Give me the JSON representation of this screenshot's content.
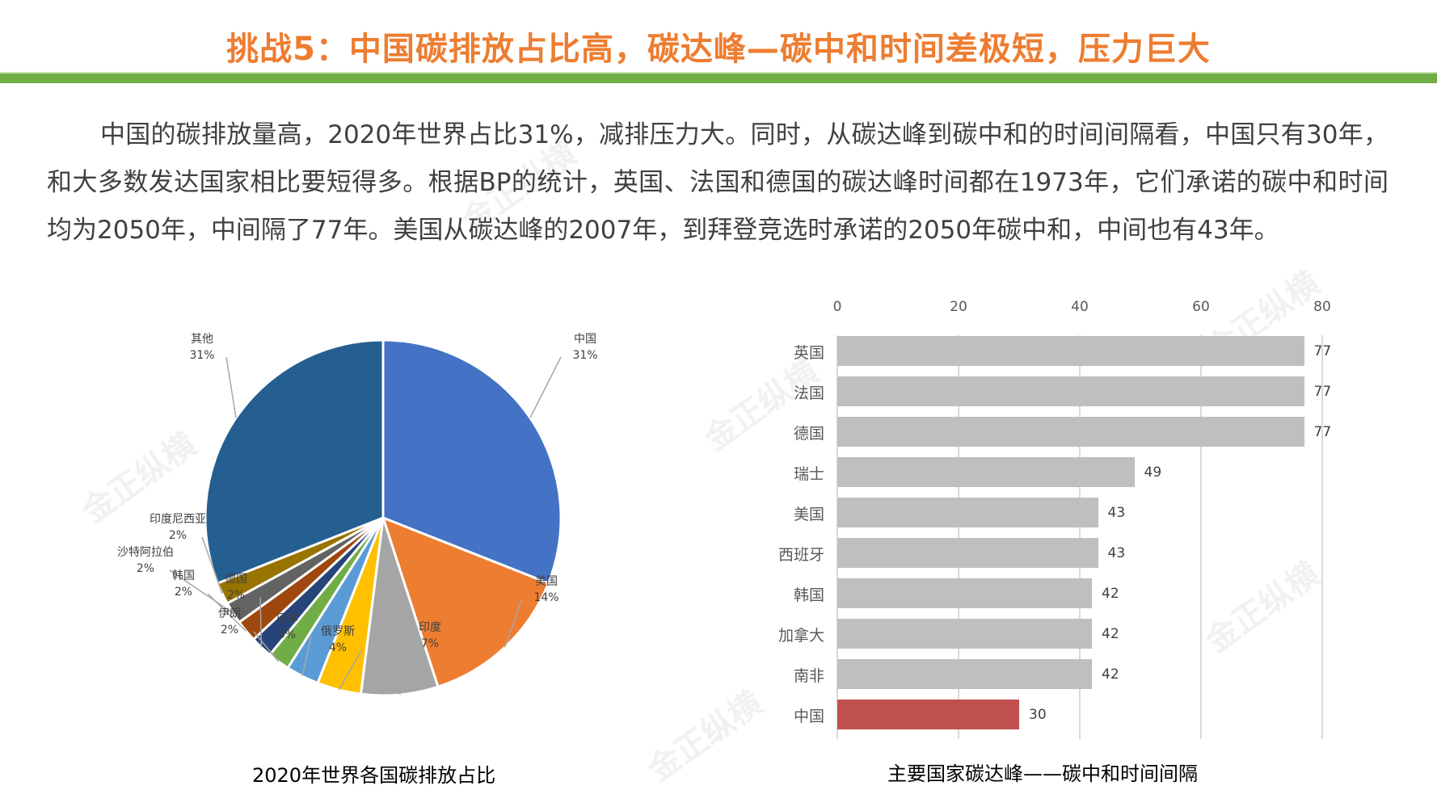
{
  "header": {
    "title": "挑战5：中国碳排放占比高，碳达峰—碳中和时间差极短，压力巨大",
    "title_color": "#ed7d31",
    "rule_color": "#70ad47"
  },
  "body": {
    "paragraph": "中国的碳排放量高，2020年世界占比31%，减排压力大。同时，从碳达峰到碳中和的时间间隔看，中国只有30年，和大多数发达国家相比要短得多。根据BP的统计，英国、法国和德国的碳达峰时间都在1973年，它们承诺的碳中和时间均为2050年，中间隔了77年。美国从碳达峰的2007年，到拜登竞选时承诺的2050年碳中和，中间也有43年。"
  },
  "watermark": {
    "text": "金正纵横"
  },
  "chart_data": [
    {
      "type": "pie",
      "title": "2020年世界各国碳排放占比",
      "categories": [
        "中国",
        "美国",
        "印度",
        "俄罗斯",
        "日本",
        "伊朗",
        "德国",
        "韩国",
        "沙特阿拉伯",
        "印度尼西亚",
        "其他"
      ],
      "values": [
        31,
        14,
        7,
        4,
        3,
        2,
        2,
        2,
        2,
        2,
        31
      ],
      "labels": [
        "31%",
        "14%",
        "7%",
        "4%",
        "3%",
        "2%",
        "2%",
        "2%",
        "2%",
        "2%",
        "31%"
      ],
      "colors": [
        "#4472c4",
        "#ed7d31",
        "#a5a5a5",
        "#ffc000",
        "#5b9bd5",
        "#70ad47",
        "#264478",
        "#9e480e",
        "#636363",
        "#997300",
        "#255e91"
      ],
      "legend": "none (data labels with leader lines)"
    },
    {
      "type": "bar",
      "orientation": "horizontal",
      "title": "主要国家碳达峰——碳中和时间间隔",
      "categories": [
        "英国",
        "法国",
        "德国",
        "瑞士",
        "美国",
        "西班牙",
        "韩国",
        "加拿大",
        "南非",
        "中国"
      ],
      "values": [
        77,
        77,
        77,
        49,
        43,
        43,
        42,
        42,
        42,
        30
      ],
      "colors": [
        "#bfbfbf",
        "#bfbfbf",
        "#bfbfbf",
        "#bfbfbf",
        "#bfbfbf",
        "#bfbfbf",
        "#bfbfbf",
        "#bfbfbf",
        "#bfbfbf",
        "#c0504d"
      ],
      "xlim": [
        0,
        80
      ],
      "xticks": [
        "0",
        "20",
        "40",
        "60",
        "80"
      ],
      "xaxis_position": "top",
      "grid": true
    }
  ]
}
